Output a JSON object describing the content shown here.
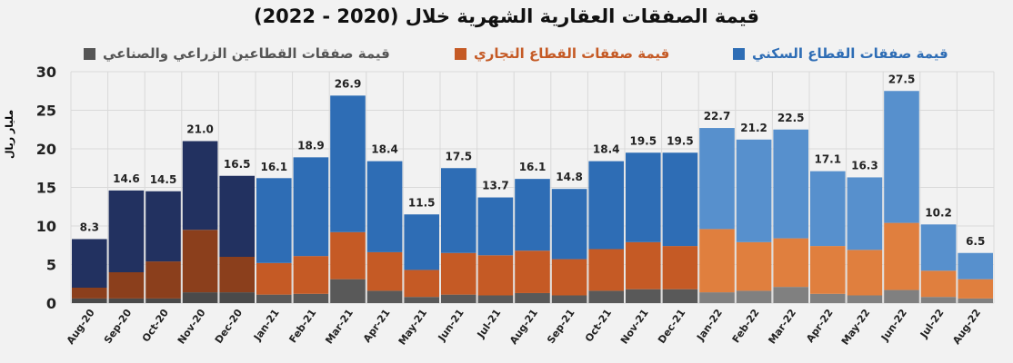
{
  "chart_data": {
    "type": "bar",
    "stacked": true,
    "title": "قيمة الصفقات العقارية الشهرية خلال (2020 - 2022)",
    "ylabel": "مليار ريال",
    "ylim": [
      0,
      30
    ],
    "yticks": [
      "0",
      "5",
      "10",
      "15",
      "20",
      "25",
      "30"
    ],
    "grid": true,
    "legend_position": "top",
    "categories": [
      "Aug-20",
      "Sep-20",
      "Oct-20",
      "Nov-20",
      "Dec-20",
      "Jan-21",
      "Feb-21",
      "Mar-21",
      "Apr-21",
      "May-21",
      "Jun-21",
      "Jul-21",
      "Aug-21",
      "Sep-21",
      "Oct-21",
      "Nov-21",
      "Dec-21",
      "Jan-22",
      "Feb-22",
      "Mar-22",
      "Apr-22",
      "May-22",
      "Jun-22",
      "Jul-22",
      "Aug-22"
    ],
    "totals": [
      "8.3",
      "14.6",
      "14.5",
      "21.0",
      "16.5",
      "16.1",
      "18.9",
      "26.9",
      "18.4",
      "11.5",
      "17.5",
      "13.7",
      "16.1",
      "14.8",
      "18.4",
      "19.5",
      "19.5",
      "22.7",
      "21.2",
      "22.5",
      "17.1",
      "16.3",
      "27.5",
      "10.2",
      "6.5"
    ],
    "series": [
      {
        "name": "قيمة صفقات القطاعين الزراعي والصناعي",
        "values": [
          0.6,
          0.6,
          0.6,
          1.4,
          1.4,
          1.1,
          1.2,
          3.1,
          1.6,
          0.8,
          1.1,
          1.0,
          1.3,
          1.0,
          1.6,
          1.8,
          1.8,
          1.4,
          1.6,
          2.1,
          1.2,
          1.0,
          1.7,
          0.8,
          0.6
        ]
      },
      {
        "name": "قيمة صفقات القطاع التجاري",
        "values": [
          1.4,
          3.4,
          4.8,
          8.1,
          4.6,
          4.1,
          4.9,
          6.1,
          5.0,
          3.5,
          5.4,
          5.2,
          5.5,
          4.7,
          5.4,
          6.1,
          5.6,
          8.2,
          6.3,
          6.3,
          6.2,
          5.9,
          8.7,
          3.4,
          2.5
        ]
      },
      {
        "name": "قيمة صفقات القطاع السكني",
        "values": [
          6.3,
          10.6,
          9.1,
          11.5,
          10.5,
          11.0,
          12.8,
          17.7,
          11.8,
          7.2,
          11.0,
          7.5,
          9.3,
          9.1,
          11.4,
          11.6,
          12.1,
          13.1,
          13.3,
          14.1,
          9.7,
          9.4,
          17.1,
          6.0,
          3.4
        ]
      }
    ],
    "colors": {
      "2020": [
        "#4a4a4a",
        "#8b3f1c",
        "#223160"
      ],
      "2021": [
        "#595959",
        "#c55a25",
        "#2e6db5"
      ],
      "2022": [
        "#808080",
        "#e07f3e",
        "#5790cd"
      ],
      "legend": [
        "#555555",
        "#c55a25",
        "#2e6db5"
      ],
      "legend_text": [
        "#555555",
        "#c55a25",
        "#2e6db5"
      ]
    }
  }
}
